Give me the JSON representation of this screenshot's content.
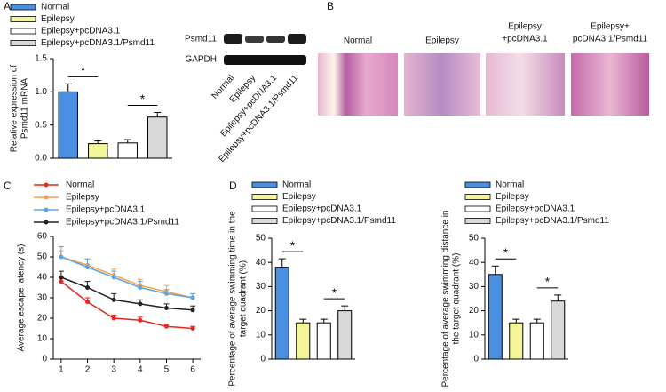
{
  "panel_labels": [
    "A",
    "B",
    "C",
    "D"
  ],
  "blot": {
    "rows": [
      "Psmd11",
      "GAPDH"
    ],
    "lanes": [
      "Normal",
      "Epilepsy",
      "Epilepsy+pcDNA3.1",
      "Epilepsy+pcDNA3.1/Psmd11"
    ]
  },
  "histology": {
    "labels": [
      [
        "Normal"
      ],
      [
        "Epilepsy"
      ],
      [
        "Epilepsy",
        "+pcDNA3.1"
      ],
      [
        "Epilepsy+",
        "pcDNA3.1/Psmd11"
      ]
    ]
  },
  "chart_data": [
    {
      "type": "bar",
      "y_label": [
        "Relative expression of",
        "Psmd11 mRNA"
      ],
      "categories": [
        "Normal",
        "Epilepsy",
        "Epilepsy+pcDNA3.1",
        "Epilepsy+pcDNA3.1/Psmd11"
      ],
      "colors": [
        "#4a8fe2",
        "#f4f49a",
        "#ffffff",
        "#d9d9d9"
      ],
      "values": [
        1.0,
        0.22,
        0.23,
        0.62
      ],
      "errors": [
        0.12,
        0.04,
        0.05,
        0.07
      ],
      "ylim": [
        0,
        1.5
      ],
      "yticks": [
        {
          "value": 0,
          "label": "0.0"
        },
        {
          "value": 0.5,
          "label": "0.5"
        },
        {
          "value": 1.0,
          "label": "1.0"
        },
        {
          "value": 1.5,
          "label": "1.5"
        }
      ],
      "annotations": [
        "*",
        "*"
      ]
    },
    {
      "type": "line",
      "y_label": [
        "Average escape latency (s)"
      ],
      "x": [
        1,
        2,
        3,
        4,
        5,
        6
      ],
      "xlim": [
        0.7,
        6.3
      ],
      "xticks": [
        1,
        2,
        3,
        4,
        5,
        6
      ],
      "ylim": [
        0,
        60
      ],
      "yticks": [
        0,
        10,
        20,
        30,
        40,
        50,
        60
      ],
      "series": [
        {
          "name": "Normal",
          "color": "#e8261e",
          "values": [
            38,
            28,
            20,
            19,
            16,
            15
          ],
          "errors": [
            2,
            2,
            1.5,
            1.5,
            1,
            1
          ]
        },
        {
          "name": "Epilepsy",
          "color": "#f5a04a",
          "values": [
            50,
            46,
            41,
            36,
            33,
            30
          ],
          "errors": [
            3,
            3,
            3,
            3,
            3,
            2
          ]
        },
        {
          "name": "Epilepsy+pcDNA3.1",
          "color": "#5ca6e6",
          "values": [
            50,
            45,
            40,
            35,
            32,
            30
          ],
          "errors": [
            5,
            4,
            3,
            3,
            2,
            2
          ]
        },
        {
          "name": "Epilepsy+pcDNA3.1/Psmd11",
          "color": "#222222",
          "values": [
            40,
            35,
            29,
            27,
            25,
            24
          ],
          "errors": [
            3,
            3,
            3,
            2,
            2,
            2
          ]
        }
      ]
    },
    {
      "type": "bar",
      "y_label": [
        "Percentage of average swimming time in the",
        "target quadrant (%)"
      ],
      "categories": [
        "Normal",
        "Epilepsy",
        "Epilepsy+pcDNA3.1",
        "Epilepsy+pcDNA3.1/Psmd11"
      ],
      "colors": [
        "#4a8fe2",
        "#f4f49a",
        "#ffffff",
        "#d9d9d9"
      ],
      "values": [
        38,
        15,
        15,
        20
      ],
      "errors": [
        3.5,
        1.5,
        1.5,
        2
      ],
      "ylim": [
        0,
        50
      ],
      "yticks": [
        0,
        10,
        20,
        30,
        40,
        50
      ],
      "annotations": [
        "*",
        "*"
      ]
    },
    {
      "type": "bar",
      "y_label": [
        "Percentage of average swimming distance in",
        "the target quadrant (%)"
      ],
      "categories": [
        "Normal",
        "Epilepsy",
        "Epilepsy+pcDNA3.1",
        "Epilepsy+pcDNA3.1/Psmd11"
      ],
      "colors": [
        "#4a8fe2",
        "#f4f49a",
        "#ffffff",
        "#d9d9d9"
      ],
      "values": [
        35,
        15,
        15,
        24
      ],
      "errors": [
        3.5,
        1.5,
        1.5,
        2.5
      ],
      "ylim": [
        0,
        50
      ],
      "yticks": [
        0,
        10,
        20,
        30,
        40,
        50
      ],
      "annotations": [
        "*",
        "*"
      ]
    }
  ]
}
